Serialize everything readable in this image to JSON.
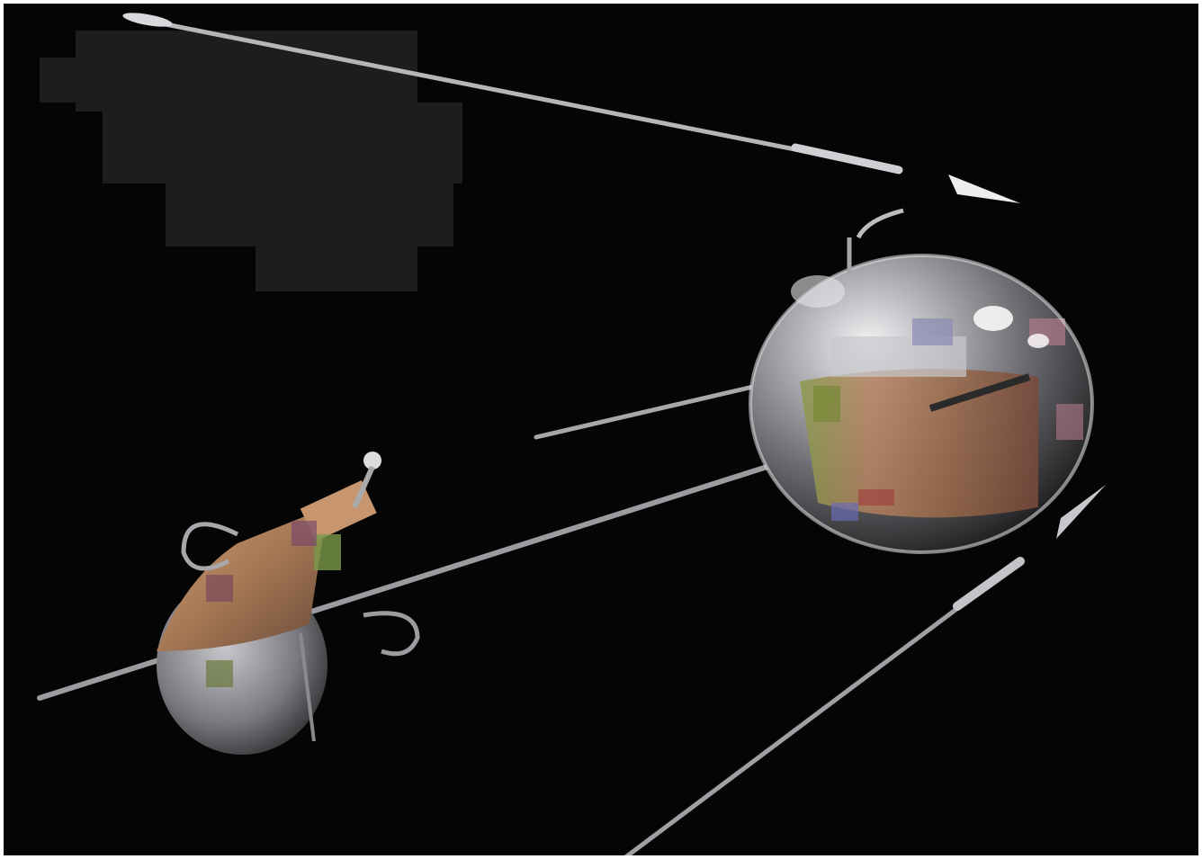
{
  "scene": {
    "background": "#050505",
    "frame_color": "#ffffff",
    "main_satellite": {
      "sphere_color": "#9a9aa0",
      "highlight_color": "#f0f0f4",
      "band_colors": [
        "#b08060",
        "#7a8a4a",
        "#6a5a78",
        "#a06a50"
      ]
    },
    "secondary_object": {
      "body_color": "#a68060",
      "disc_color": "#8a8a90"
    },
    "antenna_color": "#b8b8bc",
    "haze_color": "#1e1e1e"
  }
}
